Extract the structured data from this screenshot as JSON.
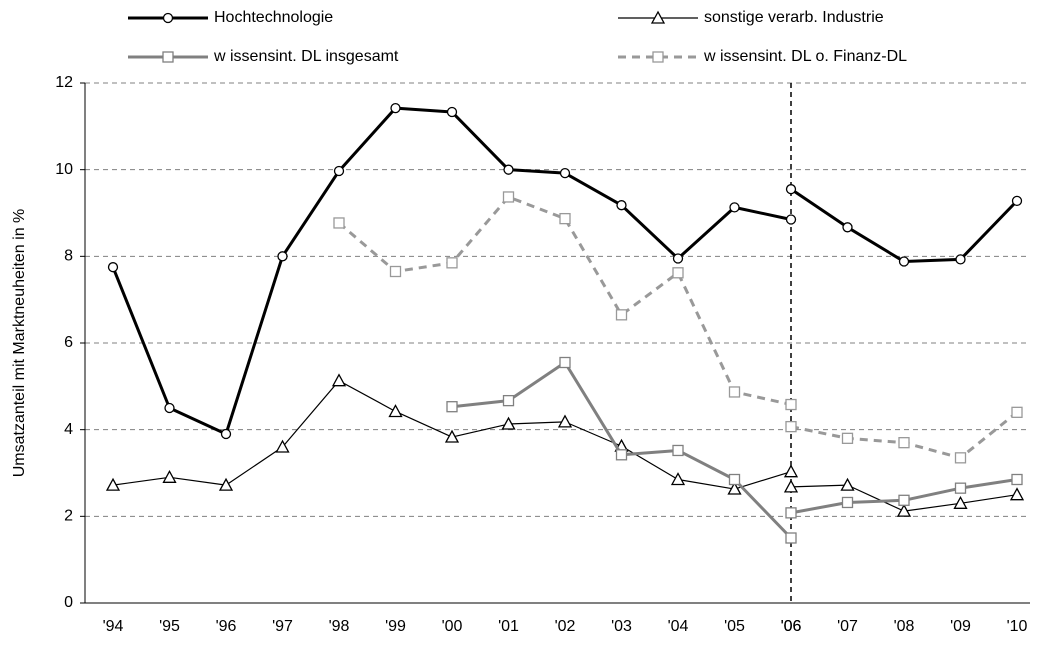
{
  "chart_data": {
    "type": "line",
    "y_label": "Umsatzanteil mit Marktneuheiten in %",
    "categories": [
      "'94",
      "'95",
      "'96",
      "'97",
      "'98",
      "'99",
      "'00",
      "'01",
      "'02",
      "'03",
      "'04",
      "'05",
      "'06",
      "'06",
      "'07",
      "'08",
      "'09",
      "'10"
    ],
    "ylim": [
      0,
      12
    ],
    "yticks": [
      0,
      2,
      4,
      6,
      8,
      10,
      12
    ],
    "grid": true,
    "series": [
      {
        "name": "Hochtechnologie",
        "color": "#000000",
        "width": 3,
        "dashed": false,
        "marker": "circle",
        "values": [
          7.75,
          4.5,
          3.9,
          8.0,
          9.97,
          11.42,
          11.33,
          10.0,
          9.92,
          9.18,
          7.95,
          9.13,
          8.85,
          9.55,
          8.67,
          7.88,
          7.93,
          9.28
        ]
      },
      {
        "name": "sonstige verarb. Industrie",
        "color": "#000000",
        "width": 1.2,
        "dashed": false,
        "marker": "triangle",
        "values": [
          2.72,
          2.9,
          2.72,
          3.6,
          5.13,
          4.42,
          3.83,
          4.13,
          4.18,
          3.62,
          2.85,
          2.63,
          3.03,
          2.68,
          2.72,
          2.12,
          2.3,
          2.5
        ]
      },
      {
        "name": "w issensint. DL insgesamt",
        "color": "#808080",
        "width": 3,
        "dashed": false,
        "marker": "square",
        "values": [
          null,
          null,
          null,
          null,
          null,
          null,
          4.53,
          4.67,
          5.55,
          3.42,
          3.52,
          2.85,
          1.5,
          2.08,
          2.32,
          2.37,
          2.65,
          2.85
        ]
      },
      {
        "name": "w issensint. DL o. Finanz-DL",
        "color": "#999999",
        "width": 3,
        "dashed": true,
        "marker": "square",
        "values": [
          null,
          null,
          null,
          null,
          8.77,
          7.65,
          7.85,
          9.37,
          8.87,
          6.65,
          7.62,
          4.87,
          4.58,
          4.07,
          3.8,
          3.7,
          3.35,
          4.4
        ]
      }
    ]
  }
}
